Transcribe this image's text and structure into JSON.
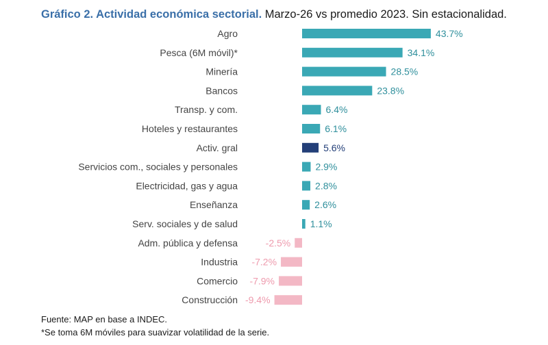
{
  "title_bold": "Gráfico 2. Actividad económica sectorial.",
  "title_rest": "Marzo-26 vs promedio 2023. Sin estacionalidad.",
  "source": "Fuente: MAP en base a INDEC.",
  "footnote": "*Se toma 6M móviles para suavizar volatilidad de la serie.",
  "colors": {
    "positive": "#3aa8b5",
    "highlight": "#233f78",
    "negative": "#f3b8c5",
    "positive_label": "#2f8f9c",
    "highlight_label": "#233f78",
    "negative_label": "#ee9aad",
    "category_label": "#444444"
  },
  "chart_data": {
    "type": "bar",
    "orientation": "horizontal",
    "categories": [
      "Agro",
      "Pesca (6M móvil)*",
      "Minería",
      "Bancos",
      "Transp. y com.",
      "Hoteles y restaurantes",
      "Activ. gral",
      "Servicios com., sociales y personales",
      "Electricidad, gas y agua",
      "Enseñanza",
      "Serv. sociales y de salud",
      "Adm. pública y defensa",
      "Industria",
      "Comercio",
      "Construcción"
    ],
    "values": [
      43.7,
      34.1,
      28.5,
      23.8,
      6.4,
      6.1,
      5.6,
      2.9,
      2.8,
      2.6,
      1.1,
      -2.5,
      -7.2,
      -7.9,
      -9.4
    ],
    "labels": [
      "43.7%",
      "34.1%",
      "28.5%",
      "23.8%",
      "6.4%",
      "6.1%",
      "5.6%",
      "2.9%",
      "2.8%",
      "2.6%",
      "1.1%",
      "-2.5%",
      "-7.2%",
      "-7.9%",
      "-9.4%"
    ],
    "highlight": "Activ. gral",
    "unit": "%",
    "grid": false,
    "legend": "none"
  }
}
